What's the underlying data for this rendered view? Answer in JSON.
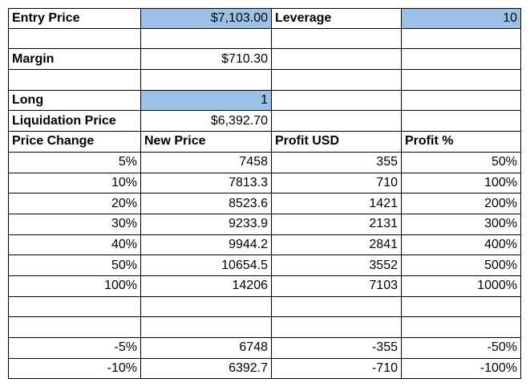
{
  "sheet": {
    "fill_color": "#9bc2e6",
    "entry_price_label": "Entry Price",
    "entry_price_value": "$7,103.00",
    "leverage_label": "Leverage",
    "leverage_value": "10",
    "margin_label": "Margin",
    "margin_value": "$710.30",
    "long_label": "Long",
    "long_value": "1",
    "liquidation_label": "Liquidation Price",
    "liquidation_value": "$6,392.70",
    "headers": [
      "Price Change",
      "New Price",
      "Profit USD",
      "Profit %"
    ],
    "rows": [
      [
        "5%",
        "7458",
        "355",
        "50%"
      ],
      [
        "10%",
        "7813.3",
        "710",
        "100%"
      ],
      [
        "20%",
        "8523.6",
        "1421",
        "200%"
      ],
      [
        "30%",
        "9233.9",
        "2131",
        "300%"
      ],
      [
        "40%",
        "9944.2",
        "2841",
        "400%"
      ],
      [
        "50%",
        "10654.5",
        "3552",
        "500%"
      ],
      [
        "100%",
        "14206",
        "7103",
        "1000%"
      ],
      [
        "",
        "",
        "",
        ""
      ],
      [
        "",
        "",
        "",
        ""
      ],
      [
        "-5%",
        "6748",
        "-355",
        "-50%"
      ],
      [
        "-10%",
        "6392.7",
        "-710",
        "-100%"
      ]
    ]
  }
}
